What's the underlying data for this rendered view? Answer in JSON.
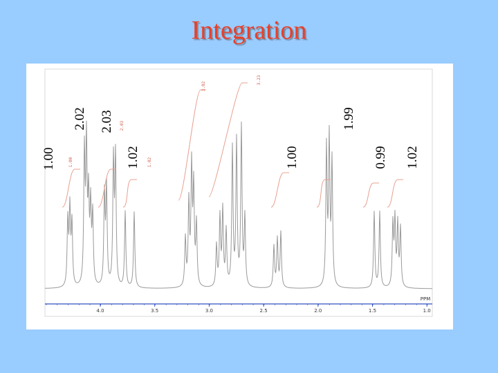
{
  "title": "Integration",
  "integrations": [
    "1.00",
    "2.02",
    "2.03",
    "1.02",
    "1.00",
    "1.99",
    "0.99",
    "1.02"
  ],
  "spectrum_labels": [
    "1.00",
    "2.03",
    "1.02",
    "3.02",
    "3.23"
  ],
  "axis": {
    "unit": "PPM",
    "ticks": [
      "4.0",
      "3.5",
      "3.0",
      "2.5",
      "2.0",
      "1.5",
      "1.0"
    ]
  }
}
